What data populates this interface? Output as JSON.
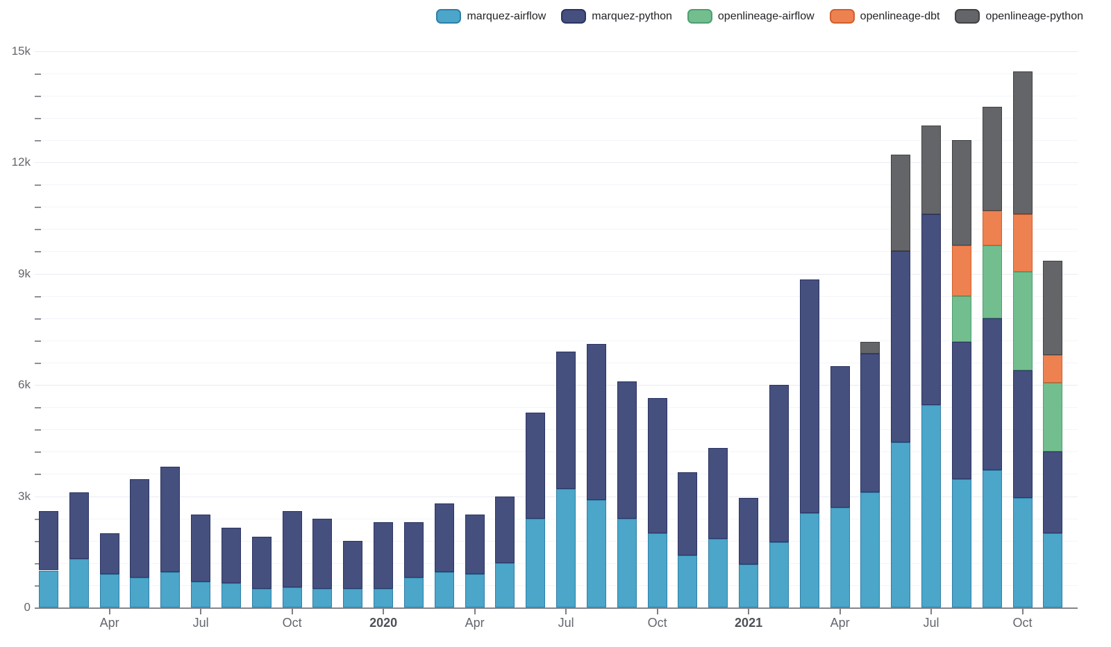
{
  "y_axis": {
    "ticks": [
      {
        "label": "0",
        "value": 0
      },
      {
        "label": "3k",
        "value": 3000
      },
      {
        "label": "6k",
        "value": 6000
      },
      {
        "label": "9k",
        "value": 9000
      },
      {
        "label": "12k",
        "value": 12000
      },
      {
        "label": "15k",
        "value": 15000
      }
    ],
    "minor_step": 600
  },
  "x_axis": {
    "labels": [
      {
        "text": "Apr",
        "index": 2,
        "bold": false
      },
      {
        "text": "Jul",
        "index": 5,
        "bold": false
      },
      {
        "text": "Oct",
        "index": 8,
        "bold": false
      },
      {
        "text": "2020",
        "index": 11,
        "bold": true
      },
      {
        "text": "Apr",
        "index": 14,
        "bold": false
      },
      {
        "text": "Jul",
        "index": 17,
        "bold": false
      },
      {
        "text": "Oct",
        "index": 20,
        "bold": false
      },
      {
        "text": "2021",
        "index": 23,
        "bold": true
      },
      {
        "text": "Apr",
        "index": 26,
        "bold": false
      },
      {
        "text": "Jul",
        "index": 29,
        "bold": false
      },
      {
        "text": "Oct",
        "index": 32,
        "bold": false
      }
    ]
  },
  "chart_data": {
    "type": "bar",
    "stacked": true,
    "grid": true,
    "legend_position": "top",
    "ylim": [
      0,
      15000
    ],
    "x": [
      "2019-02",
      "2019-03",
      "2019-04",
      "2019-05",
      "2019-06",
      "2019-07",
      "2019-08",
      "2019-09",
      "2019-10",
      "2019-11",
      "2019-12",
      "2020-01",
      "2020-02",
      "2020-03",
      "2020-04",
      "2020-05",
      "2020-06",
      "2020-07",
      "2020-08",
      "2020-09",
      "2020-10",
      "2020-11",
      "2020-12",
      "2021-01",
      "2021-02",
      "2021-03",
      "2021-04",
      "2021-05",
      "2021-06",
      "2021-07",
      "2021-08",
      "2021-09",
      "2021-10",
      "2021-11"
    ],
    "series": [
      {
        "name": "marquez-airflow",
        "color": "#4ba6c9",
        "border": "#2f7ea8",
        "values": [
          1000,
          1300,
          900,
          800,
          950,
          700,
          650,
          500,
          550,
          500,
          500,
          500,
          800,
          950,
          900,
          1200,
          2400,
          3200,
          2900,
          2400,
          2000,
          1400,
          1850,
          1150,
          1750,
          2550,
          2700,
          3100,
          4450,
          5450,
          3450,
          3700,
          2950,
          2000
        ]
      },
      {
        "name": "marquez-python",
        "color": "#45507e",
        "border": "#2b3462",
        "values": [
          1600,
          1800,
          1100,
          2650,
          2850,
          1800,
          1500,
          1400,
          2050,
          1900,
          1300,
          1800,
          1500,
          1850,
          1600,
          1800,
          2850,
          3700,
          4200,
          3700,
          3650,
          2250,
          2450,
          1800,
          4250,
          6300,
          3800,
          3750,
          5150,
          5150,
          3700,
          4100,
          3450,
          2200
        ]
      },
      {
        "name": "openlineage-airflow",
        "color": "#73be8e",
        "border": "#4e9e70",
        "values": [
          0,
          0,
          0,
          0,
          0,
          0,
          0,
          0,
          0,
          0,
          0,
          0,
          0,
          0,
          0,
          0,
          0,
          0,
          0,
          0,
          0,
          0,
          0,
          0,
          0,
          0,
          0,
          0,
          0,
          0,
          1250,
          1950,
          2650,
          1850
        ]
      },
      {
        "name": "openlineage-dbt",
        "color": "#ee8150",
        "border": "#d05f2e",
        "values": [
          0,
          0,
          0,
          0,
          0,
          0,
          0,
          0,
          0,
          0,
          0,
          0,
          0,
          0,
          0,
          0,
          0,
          0,
          0,
          0,
          0,
          0,
          0,
          0,
          0,
          0,
          0,
          0,
          0,
          0,
          1350,
          950,
          1550,
          750
        ]
      },
      {
        "name": "openlineage-python",
        "color": "#646569",
        "border": "#404144",
        "values": [
          0,
          0,
          0,
          0,
          0,
          0,
          0,
          0,
          0,
          0,
          0,
          0,
          0,
          0,
          0,
          0,
          0,
          0,
          0,
          0,
          0,
          0,
          0,
          0,
          0,
          0,
          0,
          300,
          2600,
          2400,
          2850,
          2800,
          3850,
          2550
        ]
      }
    ]
  }
}
